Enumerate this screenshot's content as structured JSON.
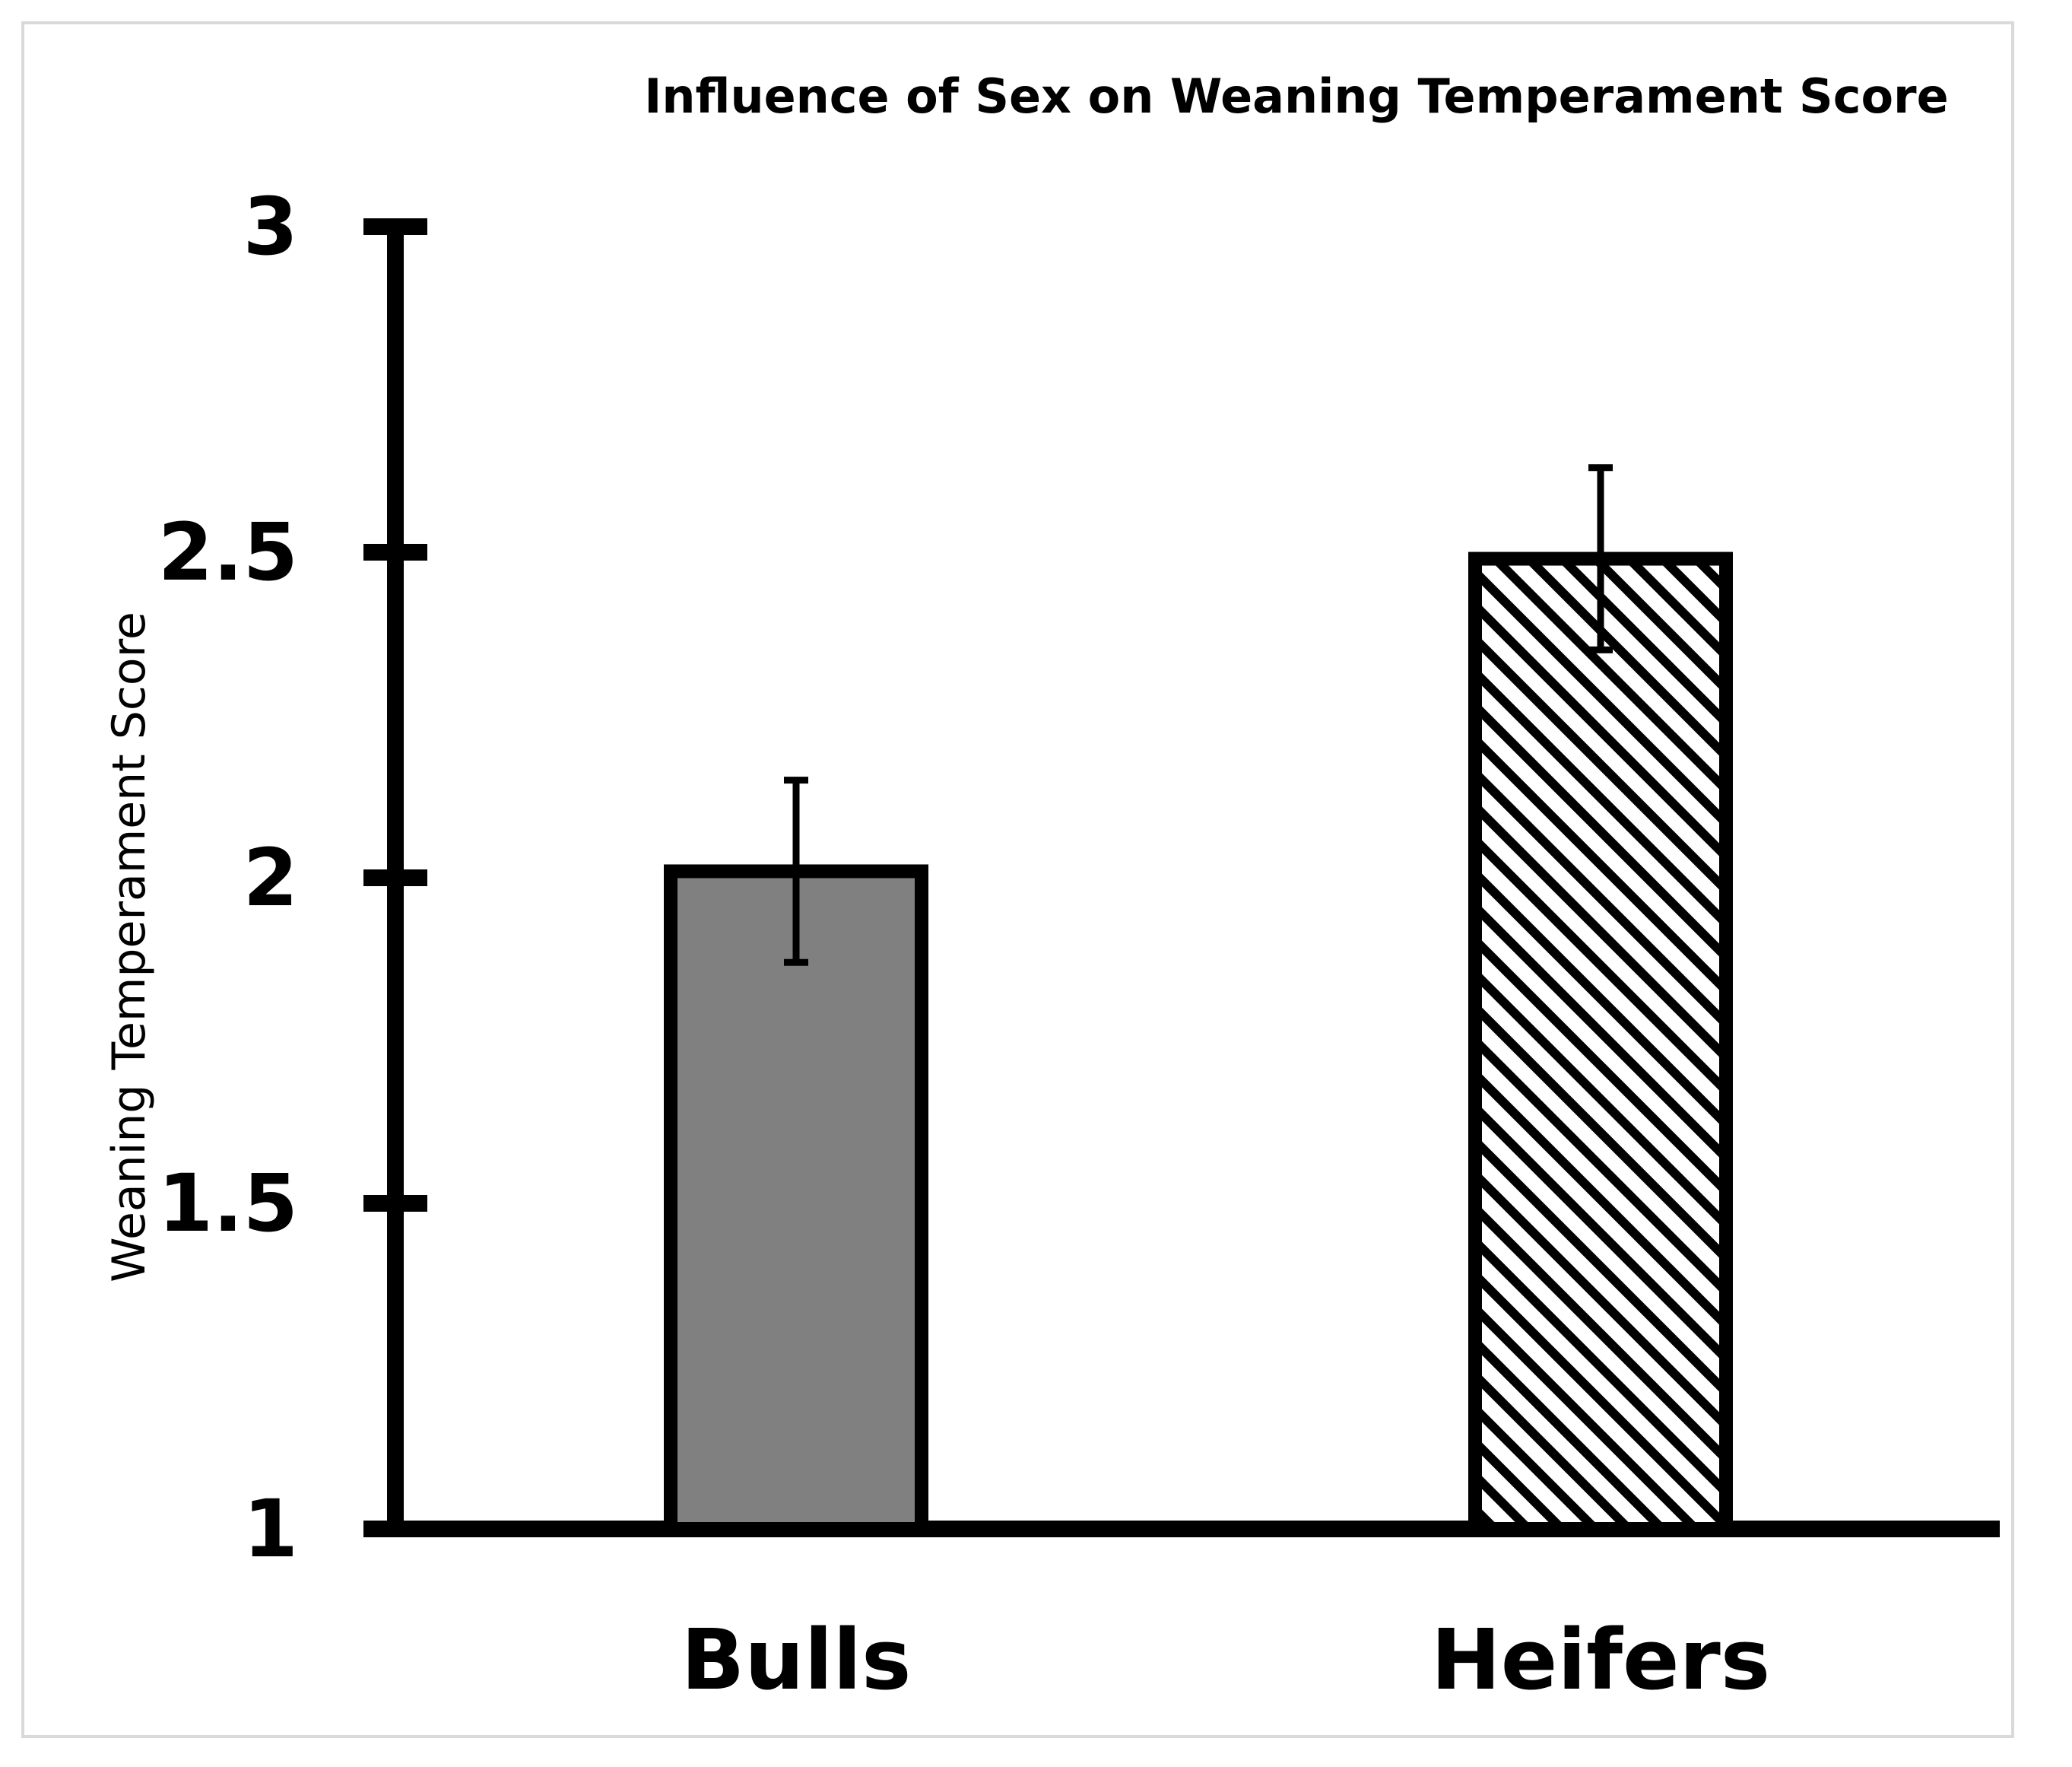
{
  "chart_data": {
    "type": "bar",
    "title": "Influence of Sex on Weaning Temperament Score",
    "xlabel": "",
    "ylabel": "Weaning Temperament Score",
    "ylim": [
      1,
      3
    ],
    "yticks": [
      "1",
      "1.5",
      "2",
      "2.5",
      "3"
    ],
    "categories": [
      "Bulls",
      "Heifers"
    ],
    "values": [
      2.01,
      2.49
    ],
    "errors": [
      0.14,
      0.14
    ],
    "bar_styles": [
      {
        "fill": "#808080",
        "pattern": "solid"
      },
      {
        "fill": "#ffffff",
        "pattern": "diagonal-hatch"
      }
    ],
    "grid": false,
    "legend": "none"
  }
}
